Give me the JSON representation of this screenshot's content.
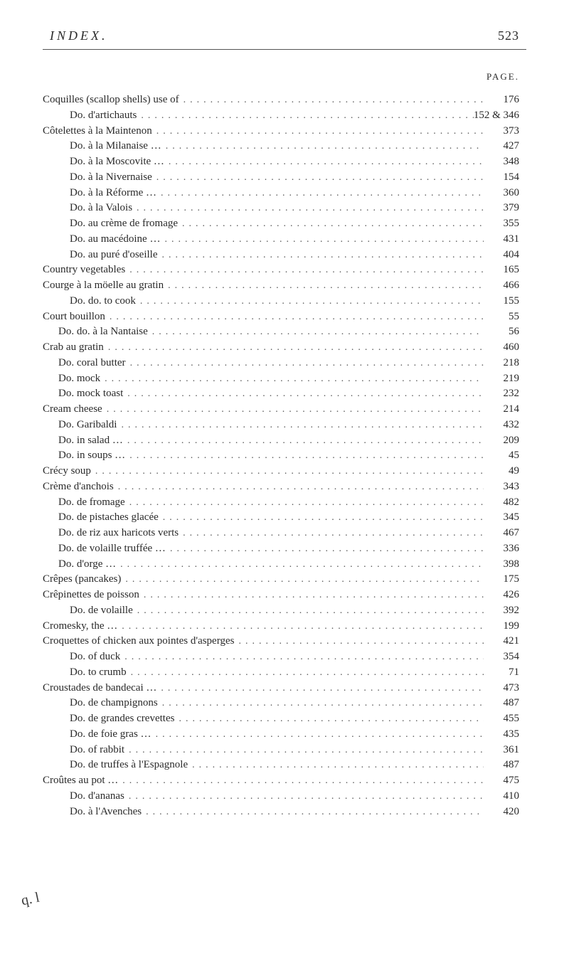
{
  "header": {
    "title": "INDEX.",
    "page": "523"
  },
  "pageLabel": "PAGE.",
  "entries": [
    {
      "label": "Coquilles (scallop shells) use of",
      "page": "176",
      "indent": 0
    },
    {
      "label": "Do.  d'artichauts",
      "page": "152 & 346",
      "indent": 1
    },
    {
      "label": "Côtelettes à la Maintenon",
      "page": "373",
      "indent": 0
    },
    {
      "label": "Do.  à la Milanaise …",
      "page": "427",
      "indent": 1
    },
    {
      "label": "Do.  à la Moscovite …",
      "page": "348",
      "indent": 1
    },
    {
      "label": "Do.  à la Nivernaise",
      "page": "154",
      "indent": 1
    },
    {
      "label": "Do.  à la Réforme …",
      "page": "360",
      "indent": 1
    },
    {
      "label": "Do.  à la Valois",
      "page": "379",
      "indent": 1
    },
    {
      "label": "Do.  au crème de fromage",
      "page": "355",
      "indent": 1
    },
    {
      "label": "Do.  au macédoine …",
      "page": "431",
      "indent": 1
    },
    {
      "label": "Do.  au puré d'oseille",
      "page": "404",
      "indent": 1
    },
    {
      "label": "Country vegetables",
      "page": "165",
      "indent": 0
    },
    {
      "label": "Courge à la möelle au gratin",
      "page": "466",
      "indent": 0
    },
    {
      "label": "Do.    do.  to cook",
      "page": "155",
      "indent": 1
    },
    {
      "label": "Court bouillon",
      "page": "55",
      "indent": 0
    },
    {
      "label": "Do.  do.  à la Nantaise",
      "page": "56",
      "indent": 2
    },
    {
      "label": "Crab au gratin",
      "page": "460",
      "indent": 0
    },
    {
      "label": "Do. coral butter",
      "page": "218",
      "indent": 2
    },
    {
      "label": "Do. mock",
      "page": "219",
      "indent": 2
    },
    {
      "label": "Do. mock toast",
      "page": "232",
      "indent": 2
    },
    {
      "label": "Cream cheese",
      "page": "214",
      "indent": 0
    },
    {
      "label": "Do. Garibaldi",
      "page": "432",
      "indent": 2
    },
    {
      "label": "Do. in salad …",
      "page": "209",
      "indent": 2
    },
    {
      "label": "Do. in soups …",
      "page": "45",
      "indent": 2
    },
    {
      "label": "Crécy soup",
      "page": "49",
      "indent": 0
    },
    {
      "label": "Crème d'anchois",
      "page": "343",
      "indent": 0
    },
    {
      "label": "Do. de fromage",
      "page": "482",
      "indent": 2
    },
    {
      "label": "Do.  de pistaches glacée",
      "page": "345",
      "indent": 2
    },
    {
      "label": "Do.  de riz aux haricots verts",
      "page": "467",
      "indent": 2
    },
    {
      "label": "Do.  de volaille truffée …",
      "page": "336",
      "indent": 2
    },
    {
      "label": "Do.  d'orge …",
      "page": "398",
      "indent": 2
    },
    {
      "label": "Crêpes (pancakes)",
      "page": "175",
      "indent": 0
    },
    {
      "label": "Crêpinettes de poisson",
      "page": "426",
      "indent": 0
    },
    {
      "label": "Do.  de volaille",
      "page": "392",
      "indent": 1
    },
    {
      "label": "Cromesky, the …",
      "page": "199",
      "indent": 0
    },
    {
      "label": "Croquettes of chicken aux pointes d'asperges",
      "page": "421",
      "indent": 0
    },
    {
      "label": "Do.  of duck",
      "page": "354",
      "indent": 1
    },
    {
      "label": "Do.  to crumb",
      "page": "71",
      "indent": 1
    },
    {
      "label": "Croustades de bandecai …",
      "page": "473",
      "indent": 0
    },
    {
      "label": "Do.  de champignons",
      "page": "487",
      "indent": 1
    },
    {
      "label": "Do.  de grandes crevettes",
      "page": "455",
      "indent": 1
    },
    {
      "label": "Do.  de foie gras …",
      "page": "435",
      "indent": 1
    },
    {
      "label": "Do.  of rabbit",
      "page": "361",
      "indent": 1
    },
    {
      "label": "Do.  de truffes à l'Espagnole",
      "page": "487",
      "indent": 1
    },
    {
      "label": "Croûtes au pot …",
      "page": "475",
      "indent": 0
    },
    {
      "label": "Do.  d'ananas",
      "page": "410",
      "indent": 1
    },
    {
      "label": "Do.  à l'Avenches",
      "page": "420",
      "indent": 1
    }
  ],
  "annotation": "q. l"
}
